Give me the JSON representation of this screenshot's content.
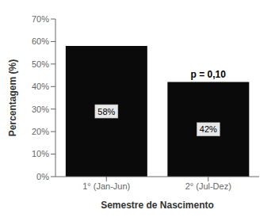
{
  "chart_data": {
    "type": "bar",
    "categories": [
      "1° (Jan-Jun)",
      "2° (Jul-Dez)"
    ],
    "values": [
      58,
      42
    ],
    "value_labels": [
      "58%",
      "42%"
    ],
    "data_labels": true,
    "color": "#0a0a0a",
    "xlabel": "Semestre de Nascimento",
    "ylabel": "Percentagem (%)",
    "ylim": [
      0,
      70
    ],
    "yticks": [
      {
        "value": 0,
        "label": "0%"
      },
      {
        "value": 10,
        "label": "10%"
      },
      {
        "value": 20,
        "label": "20%"
      },
      {
        "value": 30,
        "label": "30%"
      },
      {
        "value": 40,
        "label": "40%"
      },
      {
        "value": 50,
        "label": "50%"
      },
      {
        "value": 60,
        "label": "60%"
      },
      {
        "value": 70,
        "label": "70%"
      }
    ],
    "annotations": [
      {
        "text": "p = 0,10",
        "x": "2° (Jul-Dez)"
      }
    ],
    "grid": false
  }
}
